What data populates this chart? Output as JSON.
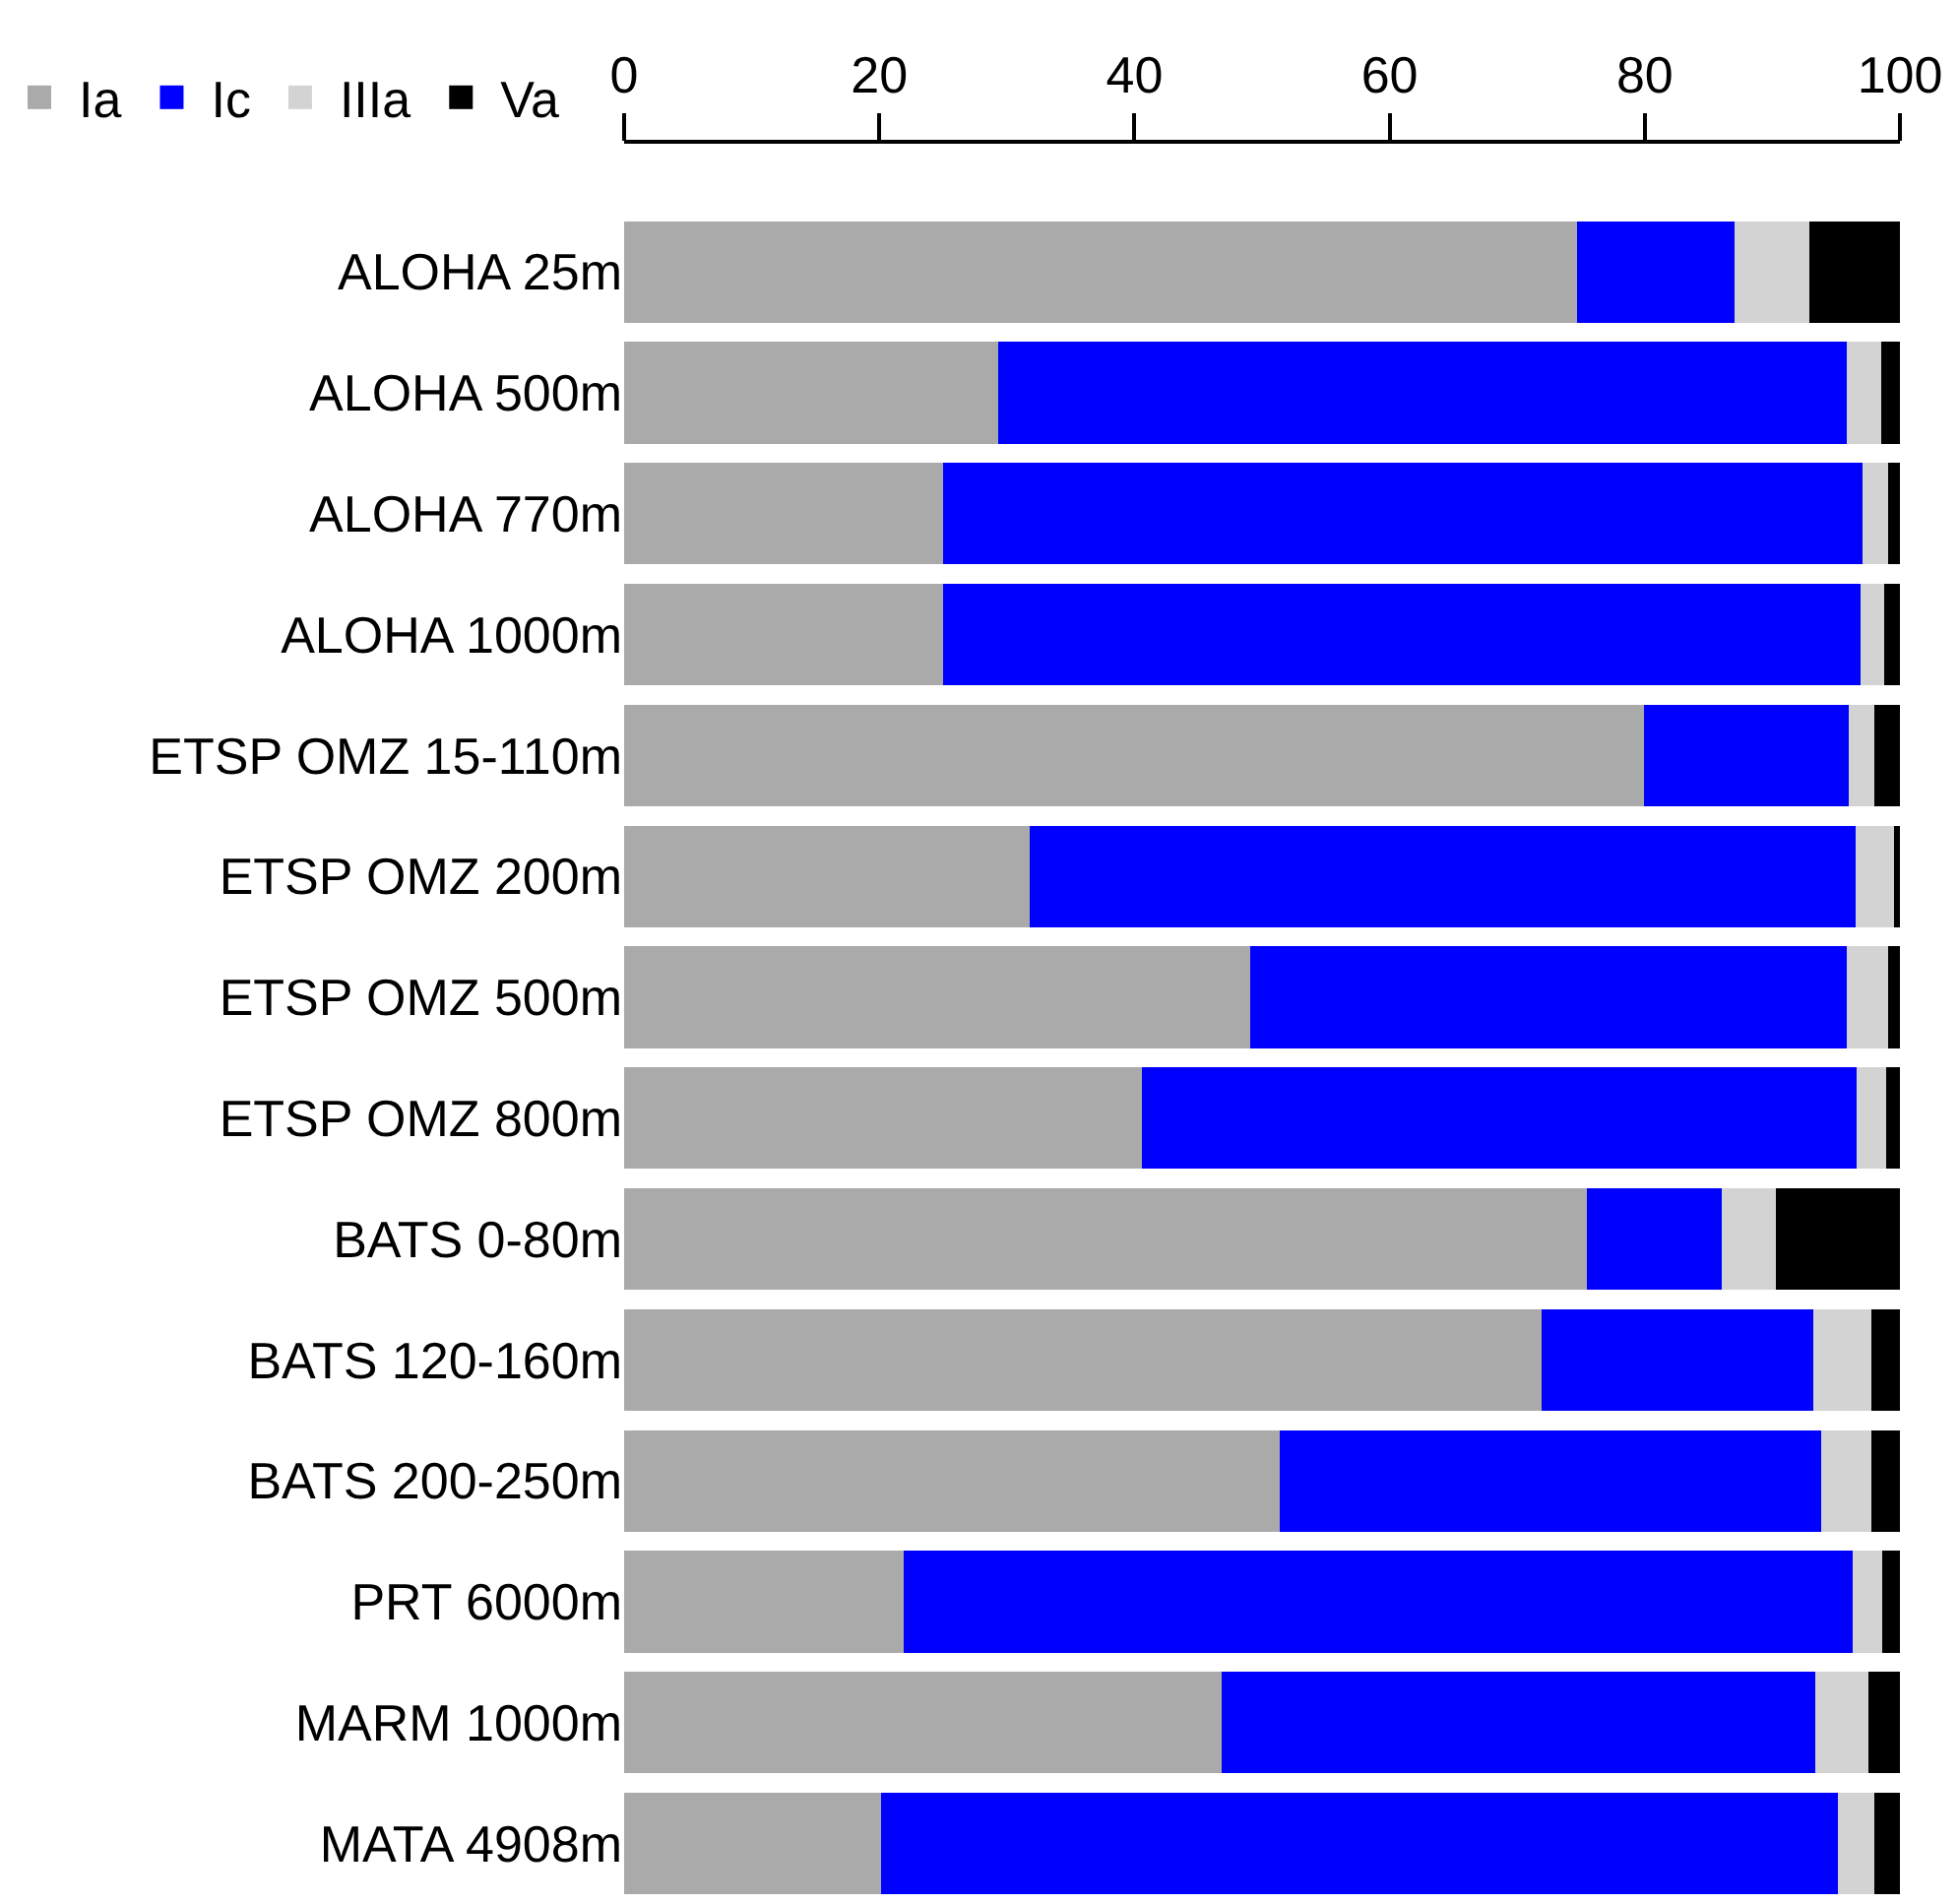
{
  "chart_data": {
    "type": "bar",
    "orientation": "horizontal",
    "stacked": true,
    "categories": [
      "ALOHA 25m",
      "ALOHA 500m",
      "ALOHA 770m",
      "ALOHA 1000m",
      "ETSP OMZ 15-110m",
      "ETSP OMZ 200m",
      "ETSP OMZ 500m",
      "ETSP OMZ 800m",
      "BATS 0-80m",
      "BATS 120-160m",
      "BATS 200-250m",
      "PRT 6000m",
      "MARM 1000m",
      "MATA 4908m"
    ],
    "series": [
      {
        "name": "Ia",
        "color": "#aaaaaa",
        "values": [
          74.7,
          29.3,
          25.0,
          25.0,
          79.9,
          31.8,
          49.1,
          40.6,
          75.5,
          71.9,
          51.4,
          21.9,
          46.8,
          20.1
        ]
      },
      {
        "name": "Ic",
        "color": "#0000ff",
        "values": [
          12.3,
          66.5,
          72.1,
          71.9,
          16.1,
          64.7,
          46.7,
          56.0,
          10.5,
          21.3,
          42.4,
          74.4,
          46.6,
          75.0
        ]
      },
      {
        "name": "IIIa",
        "color": "#d3d3d3",
        "values": [
          5.9,
          2.7,
          2.0,
          1.9,
          2.0,
          3.0,
          3.3,
          2.3,
          4.3,
          4.6,
          4.0,
          2.3,
          4.1,
          2.9
        ]
      },
      {
        "name": "Va",
        "color": "#000000",
        "values": [
          7.1,
          1.5,
          0.9,
          1.2,
          2.0,
          0.5,
          0.9,
          1.1,
          9.7,
          2.2,
          2.2,
          1.4,
          2.5,
          2.0
        ]
      }
    ],
    "xlim": [
      0,
      100
    ],
    "xticks": [
      0,
      20,
      40,
      60,
      80,
      100
    ],
    "legend": "top left"
  }
}
